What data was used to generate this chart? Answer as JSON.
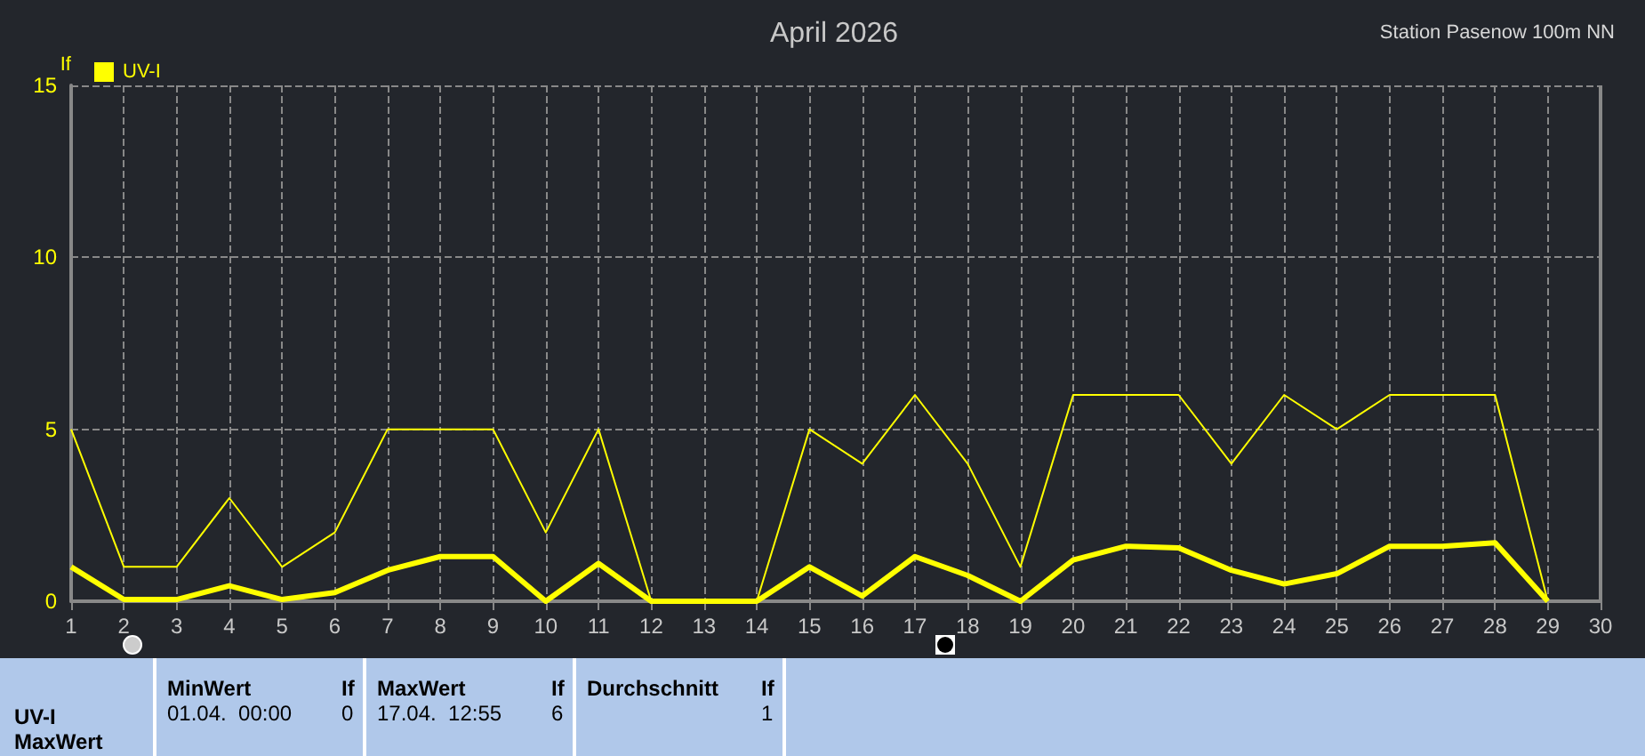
{
  "chart_data": {
    "type": "line",
    "title": "April 2026",
    "subtitle": "Station Pasenow 100m NN",
    "ylabel": "If",
    "x": [
      1,
      2,
      3,
      4,
      5,
      6,
      7,
      8,
      9,
      10,
      11,
      12,
      13,
      14,
      15,
      16,
      17,
      18,
      19,
      20,
      21,
      22,
      23,
      24,
      25,
      26,
      27,
      28,
      29
    ],
    "series": [
      {
        "name": "UV-I",
        "color": "#ffff00",
        "values": [
          5,
          1,
          1,
          3,
          1,
          2,
          5,
          5,
          5,
          2,
          5,
          0,
          0,
          0,
          5,
          4,
          6,
          4,
          1,
          6,
          6,
          6,
          4,
          6,
          5,
          6,
          6,
          6,
          0
        ]
      },
      {
        "color": "#ffff00",
        "values": [
          1.0,
          0.05,
          0.05,
          0.45,
          0.05,
          0.25,
          0.9,
          1.3,
          1.3,
          0,
          1.1,
          0,
          0,
          0,
          1.0,
          0.15,
          1.3,
          0.75,
          0,
          1.2,
          1.6,
          1.55,
          0.9,
          0.5,
          0.8,
          1.6,
          1.6,
          1.7,
          0
        ]
      }
    ],
    "xlim": [
      1,
      30
    ],
    "xticks": [
      1,
      2,
      3,
      4,
      5,
      6,
      7,
      8,
      9,
      10,
      11,
      12,
      13,
      14,
      15,
      16,
      17,
      18,
      19,
      20,
      21,
      22,
      23,
      24,
      25,
      26,
      27,
      28,
      29,
      30
    ],
    "ylim": [
      0,
      15
    ],
    "yticks": [
      0,
      5,
      10,
      15
    ],
    "grid": true,
    "legend": "top left",
    "marker": "none",
    "annotations": [
      "UV-I",
      "MaxWert",
      "MinWert",
      "If",
      "01.04.  00:00",
      "0",
      "MaxWert",
      "If",
      "17.04.  12:55",
      "6",
      "Durchschnitt",
      "If",
      "1"
    ]
  }
}
